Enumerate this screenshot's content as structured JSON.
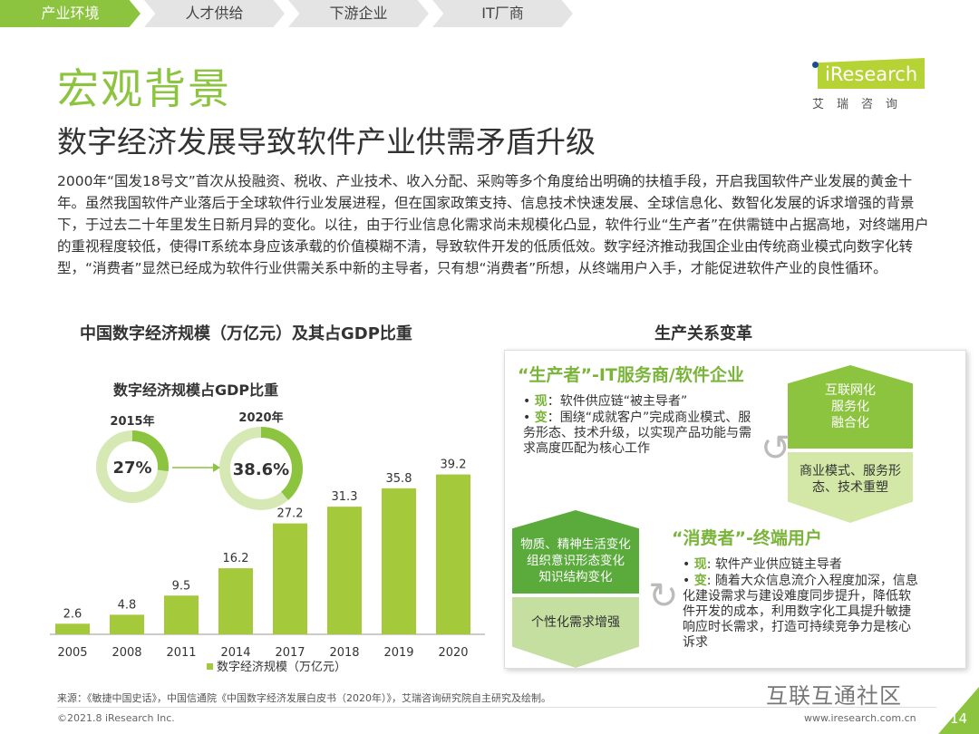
{
  "tabs": [
    {
      "label": "产业环境",
      "active": true
    },
    {
      "label": "人才供给"
    },
    {
      "label": "下游企业"
    },
    {
      "label": "IT厂商"
    }
  ],
  "title": "宏观背景",
  "logo": {
    "text": "iResearch",
    "cn": "艾瑞咨询"
  },
  "subtitle": "数字经济发展导致软件产业供需矛盾升级",
  "paragraph": "2000年“国发18号文”首次从投融资、税收、产业技术、收入分配、采购等多个角度给出明确的扶植手段，开启我国软件产业发展的黄金十年。虽然我国软件产业落后于全球软件行业发展进程，但在国家政策支持、信息技术快速发展、全球信息化、数智化发展的诉求增强的背景下，于过去二十年里发生日新月异的变化。以往，由于行业信息化需求尚未规模化凸显，软件行业“生产者”在供需链中占据高地，对终端用户的重视程度较低，使得IT系统本身应该承载的价值模糊不清，导致软件开发的低质低效。数字经济推动我国企业由传统商业模式向数字化转型，“消费者”显然已经成为软件行业供需关系中新的主导者，只有想“消费者”所想，从终端用户入手，才能促进软件产业的良性循环。",
  "chart_data": {
    "type": "bar",
    "title": "中国数字经济规模（万亿元）及其占GDP比重",
    "categories": [
      "2005",
      "2008",
      "2011",
      "2014",
      "2017",
      "2018",
      "2019",
      "2020"
    ],
    "values": [
      2.6,
      4.8,
      9.5,
      16.2,
      27.2,
      31.3,
      35.8,
      39.2
    ],
    "legend": "数字经济规模（万亿元）",
    "legend_position": "bottom",
    "color": "#a4c93a",
    "inset": {
      "title": "数字经济规模占GDP比重",
      "items": [
        {
          "year": "2015年",
          "label": "27%",
          "value": 27
        },
        {
          "year": "2020年",
          "label": "38.6%",
          "value": 38.6
        }
      ]
    }
  },
  "right": {
    "title": "生产关系变革",
    "producer": {
      "title": "“生产者”-IT服务商/软件企业",
      "now_label": "现",
      "now": "：软件供应链“被主导者”",
      "change_label": "变",
      "change": "：围绕“成就客户”完成商业模式、服务形态、技术升级，以实现产品功能与需求高度匹配为核心工作",
      "hex_top": [
        "互联网化",
        "服务化",
        "融合化"
      ],
      "hex_bottom": "商业模式、服务形态、技术重塑"
    },
    "consumer": {
      "title": "“消费者”-终端用户",
      "now_label": "现",
      "now": ": 软件产业供应链主导者",
      "change_label": "变",
      "change": ": 随着大众信息流介入程度加深，信息化建设需求与建设难度同步提升，降低软件开发的成本，利用数字化工具提升敏捷响应时长需求，打造可持续竞争力是核心诉求",
      "hex_top": [
        "物质、精神生活变化",
        "组织意识形态变化",
        "知识结构变化"
      ],
      "hex_bottom": "个性化需求增强"
    }
  },
  "footer": {
    "source": "来源：《敏捷中国史话》，中国信通院《中国数字经济发展白皮书（2020年）》，艾瑞咨询研究院自主研究及绘制。",
    "copyright": "©2021.8 iResearch Inc.",
    "url": "www.iresearch.com.cn",
    "page": "14",
    "watermark": "互联互通社区"
  },
  "colors": {
    "accent": "#8cc43f",
    "dark_green": "#5aaa3c",
    "light_green": "#c5dfa0"
  }
}
